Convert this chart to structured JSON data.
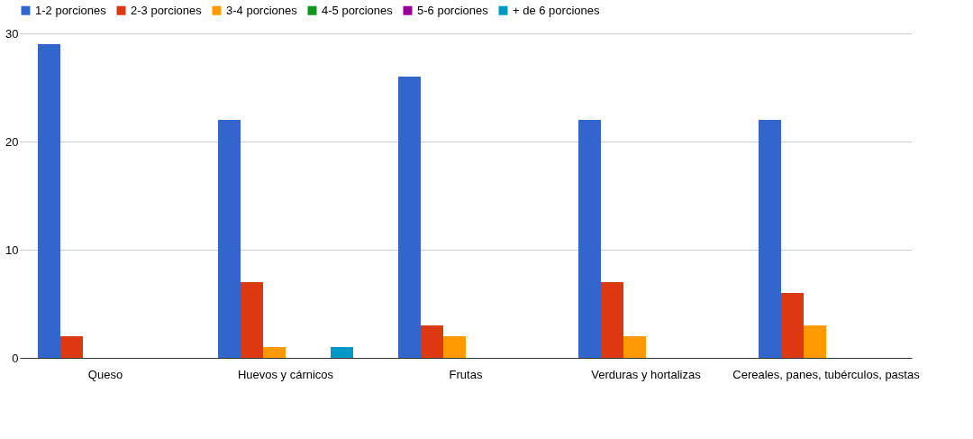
{
  "chart_data": {
    "type": "bar",
    "categories": [
      "Queso",
      "Huevos y cárnicos",
      "Frutas",
      "Verduras y hortalizas",
      "Cereales, panes, tubérculos, pastas"
    ],
    "series": [
      {
        "name": "1-2 porciones",
        "color": "#3366cc",
        "values": [
          29,
          22,
          26,
          22,
          22
        ]
      },
      {
        "name": "2-3 porciones",
        "color": "#dc3912",
        "values": [
          2,
          7,
          3,
          7,
          6
        ]
      },
      {
        "name": "3-4 porciones",
        "color": "#ff9900",
        "values": [
          0,
          1,
          2,
          2,
          3
        ]
      },
      {
        "name": "4-5 porciones",
        "color": "#109618",
        "values": [
          0,
          0,
          0,
          0,
          0
        ]
      },
      {
        "name": "5-6 porciones",
        "color": "#990099",
        "values": [
          0,
          0,
          0,
          0,
          0
        ]
      },
      {
        "name": "+ de 6 porciones",
        "color": "#0099c6",
        "values": [
          0,
          1,
          0,
          0,
          0
        ]
      }
    ],
    "ylim": [
      0,
      30
    ],
    "yticks": [
      0,
      10,
      20,
      30
    ],
    "grid": "y",
    "legend": "top"
  }
}
